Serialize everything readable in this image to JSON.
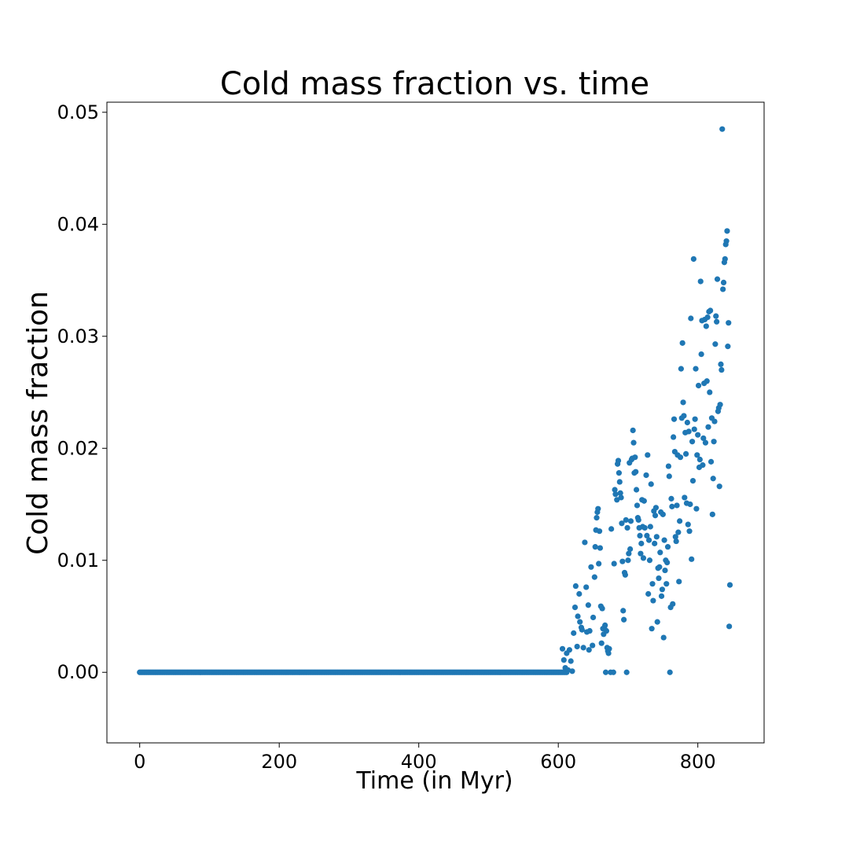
{
  "chart_data": {
    "type": "scatter",
    "title": "Cold mass fraction vs. time",
    "xlabel": "Time (in Myr)",
    "ylabel": "Cold mass fraction",
    "xlim": [
      -47,
      895
    ],
    "ylim": [
      -0.0063,
      0.0509
    ],
    "xticks": [
      0,
      200,
      400,
      600,
      800
    ],
    "xtick_labels": [
      "0",
      "200",
      "400",
      "600",
      "800"
    ],
    "yticks": [
      0.0,
      0.01,
      0.02,
      0.03,
      0.04,
      0.05
    ],
    "ytick_labels": [
      "0.00",
      "0.01",
      "0.02",
      "0.03",
      "0.04",
      "0.05"
    ],
    "grid": false,
    "marker_color": "#1f77b4",
    "series": [
      {
        "zero_run": {
          "x_start": 0,
          "x_end": 612,
          "step": 2,
          "y": 0.0
        },
        "points": [
          [
            606,
            0.0021
          ],
          [
            608,
            0.0011
          ],
          [
            610,
            0.0004
          ],
          [
            612,
            0.0017
          ],
          [
            614,
            0.0002
          ],
          [
            616,
            0.002
          ],
          [
            618,
            0.001
          ],
          [
            620,
            0.0001
          ],
          [
            622,
            0.0035
          ],
          [
            624,
            0.0058
          ],
          [
            625,
            0.0077
          ],
          [
            627,
            0.0023
          ],
          [
            628,
            0.005
          ],
          [
            630,
            0.007
          ],
          [
            631,
            0.0045
          ],
          [
            633,
            0.004
          ],
          [
            634,
            0.0038
          ],
          [
            636,
            0.0022
          ],
          [
            638,
            0.0116
          ],
          [
            640,
            0.0076
          ],
          [
            641,
            0.0036
          ],
          [
            643,
            0.006
          ],
          [
            644,
            0.002
          ],
          [
            645,
            0.0037
          ],
          [
            647,
            0.0094
          ],
          [
            649,
            0.0024
          ],
          [
            650,
            0.0049
          ],
          [
            652,
            0.0085
          ],
          [
            653,
            0.0112
          ],
          [
            654,
            0.0127
          ],
          [
            655,
            0.0138
          ],
          [
            656,
            0.0143
          ],
          [
            657,
            0.0146
          ],
          [
            658,
            0.0097
          ],
          [
            659,
            0.0126
          ],
          [
            660,
            0.0111
          ],
          [
            661,
            0.0059
          ],
          [
            662,
            0.0026
          ],
          [
            663,
            0.0057
          ],
          [
            664,
            0.0039
          ],
          [
            665,
            0.0034
          ],
          [
            666,
            0.004
          ],
          [
            667,
            0.0042
          ],
          [
            668,
            0.0
          ],
          [
            669,
            0.0037
          ],
          [
            670,
            0.0022
          ],
          [
            671,
            0.0019
          ],
          [
            672,
            0.0017
          ],
          [
            673,
            0.0021
          ],
          [
            675,
            0.0
          ],
          [
            676,
            0.0128
          ],
          [
            679,
            0.0
          ],
          [
            680,
            0.0097
          ],
          [
            681,
            0.0163
          ],
          [
            682,
            0.0159
          ],
          [
            684,
            0.0154
          ],
          [
            685,
            0.0186
          ],
          [
            686,
            0.0189
          ],
          [
            687,
            0.0178
          ],
          [
            688,
            0.017
          ],
          [
            689,
            0.016
          ],
          [
            690,
            0.0156
          ],
          [
            691,
            0.0133
          ],
          [
            692,
            0.0099
          ],
          [
            693,
            0.0055
          ],
          [
            694,
            0.0047
          ],
          [
            695,
            0.0089
          ],
          [
            696,
            0.0087
          ],
          [
            697,
            0.0136
          ],
          [
            698,
            0.0
          ],
          [
            699,
            0.0129
          ],
          [
            700,
            0.01
          ],
          [
            701,
            0.0106
          ],
          [
            702,
            0.0187
          ],
          [
            703,
            0.011
          ],
          [
            704,
            0.0135
          ],
          [
            705,
            0.019
          ],
          [
            706,
            0.0191
          ],
          [
            707,
            0.0216
          ],
          [
            708,
            0.0205
          ],
          [
            709,
            0.0178
          ],
          [
            710,
            0.0192
          ],
          [
            711,
            0.0179
          ],
          [
            712,
            0.0163
          ],
          [
            713,
            0.0149
          ],
          [
            714,
            0.0138
          ],
          [
            715,
            0.0136
          ],
          [
            716,
            0.0129
          ],
          [
            717,
            0.0122
          ],
          [
            718,
            0.0106
          ],
          [
            719,
            0.0115
          ],
          [
            720,
            0.0154
          ],
          [
            721,
            0.013
          ],
          [
            722,
            0.0102
          ],
          [
            723,
            0.0153
          ],
          [
            724,
            0.0129
          ],
          [
            726,
            0.0176
          ],
          [
            727,
            0.0122
          ],
          [
            728,
            0.0194
          ],
          [
            729,
            0.007
          ],
          [
            730,
            0.0118
          ],
          [
            731,
            0.01
          ],
          [
            732,
            0.013
          ],
          [
            733,
            0.0168
          ],
          [
            734,
            0.0039
          ],
          [
            735,
            0.0079
          ],
          [
            736,
            0.0064
          ],
          [
            737,
            0.0144
          ],
          [
            738,
            0.0115
          ],
          [
            739,
            0.014
          ],
          [
            740,
            0.0147
          ],
          [
            741,
            0.0121
          ],
          [
            742,
            0.0045
          ],
          [
            743,
            0.0093
          ],
          [
            744,
            0.0084
          ],
          [
            745,
            0.0094
          ],
          [
            746,
            0.0107
          ],
          [
            747,
            0.0143
          ],
          [
            748,
            0.0068
          ],
          [
            749,
            0.0074
          ],
          [
            750,
            0.0141
          ],
          [
            751,
            0.0031
          ],
          [
            752,
            0.0118
          ],
          [
            753,
            0.0091
          ],
          [
            754,
            0.01
          ],
          [
            755,
            0.0079
          ],
          [
            756,
            0.0098
          ],
          [
            757,
            0.0112
          ],
          [
            758,
            0.0184
          ],
          [
            759,
            0.0175
          ],
          [
            760,
            0.0
          ],
          [
            761,
            0.0058
          ],
          [
            762,
            0.0155
          ],
          [
            763,
            0.0148
          ],
          [
            764,
            0.0061
          ],
          [
            765,
            0.021
          ],
          [
            766,
            0.0226
          ],
          [
            767,
            0.0197
          ],
          [
            768,
            0.0121
          ],
          [
            769,
            0.0117
          ],
          [
            770,
            0.0149
          ],
          [
            771,
            0.0194
          ],
          [
            772,
            0.0125
          ],
          [
            773,
            0.0081
          ],
          [
            774,
            0.0135
          ],
          [
            775,
            0.0192
          ],
          [
            776,
            0.0271
          ],
          [
            777,
            0.0227
          ],
          [
            778,
            0.0294
          ],
          [
            779,
            0.0241
          ],
          [
            780,
            0.0229
          ],
          [
            781,
            0.0156
          ],
          [
            782,
            0.0214
          ],
          [
            783,
            0.0195
          ],
          [
            784,
            0.0151
          ],
          [
            785,
            0.0223
          ],
          [
            786,
            0.0132
          ],
          [
            787,
            0.0215
          ],
          [
            788,
            0.0126
          ],
          [
            789,
            0.015
          ],
          [
            790,
            0.0316
          ],
          [
            791,
            0.0101
          ],
          [
            792,
            0.0206
          ],
          [
            793,
            0.0171
          ],
          [
            794,
            0.0369
          ],
          [
            795,
            0.0217
          ],
          [
            796,
            0.0226
          ],
          [
            797,
            0.0271
          ],
          [
            798,
            0.0146
          ],
          [
            799,
            0.0194
          ],
          [
            800,
            0.0212
          ],
          [
            801,
            0.0256
          ],
          [
            802,
            0.0183
          ],
          [
            803,
            0.019
          ],
          [
            804,
            0.0349
          ],
          [
            805,
            0.0284
          ],
          [
            806,
            0.0314
          ],
          [
            807,
            0.0185
          ],
          [
            808,
            0.0209
          ],
          [
            809,
            0.0258
          ],
          [
            810,
            0.0315
          ],
          [
            811,
            0.0205
          ],
          [
            812,
            0.0309
          ],
          [
            813,
            0.026
          ],
          [
            814,
            0.0317
          ],
          [
            815,
            0.0219
          ],
          [
            816,
            0.0322
          ],
          [
            817,
            0.025
          ],
          [
            818,
            0.0323
          ],
          [
            819,
            0.0188
          ],
          [
            820,
            0.0227
          ],
          [
            821,
            0.0141
          ],
          [
            822,
            0.0173
          ],
          [
            823,
            0.0206
          ],
          [
            824,
            0.0224
          ],
          [
            825,
            0.0293
          ],
          [
            826,
            0.0318
          ],
          [
            827,
            0.0313
          ],
          [
            828,
            0.0351
          ],
          [
            829,
            0.0233
          ],
          [
            830,
            0.0236
          ],
          [
            831,
            0.0166
          ],
          [
            832,
            0.0239
          ],
          [
            833,
            0.0275
          ],
          [
            834,
            0.027
          ],
          [
            835,
            0.0485
          ],
          [
            836,
            0.0342
          ],
          [
            837,
            0.0348
          ],
          [
            838,
            0.0366
          ],
          [
            839,
            0.0369
          ],
          [
            840,
            0.0382
          ],
          [
            841,
            0.0385
          ],
          [
            842,
            0.0394
          ],
          [
            843,
            0.0291
          ],
          [
            844,
            0.0312
          ],
          [
            845,
            0.0041
          ],
          [
            846,
            0.0078
          ]
        ]
      }
    ]
  }
}
